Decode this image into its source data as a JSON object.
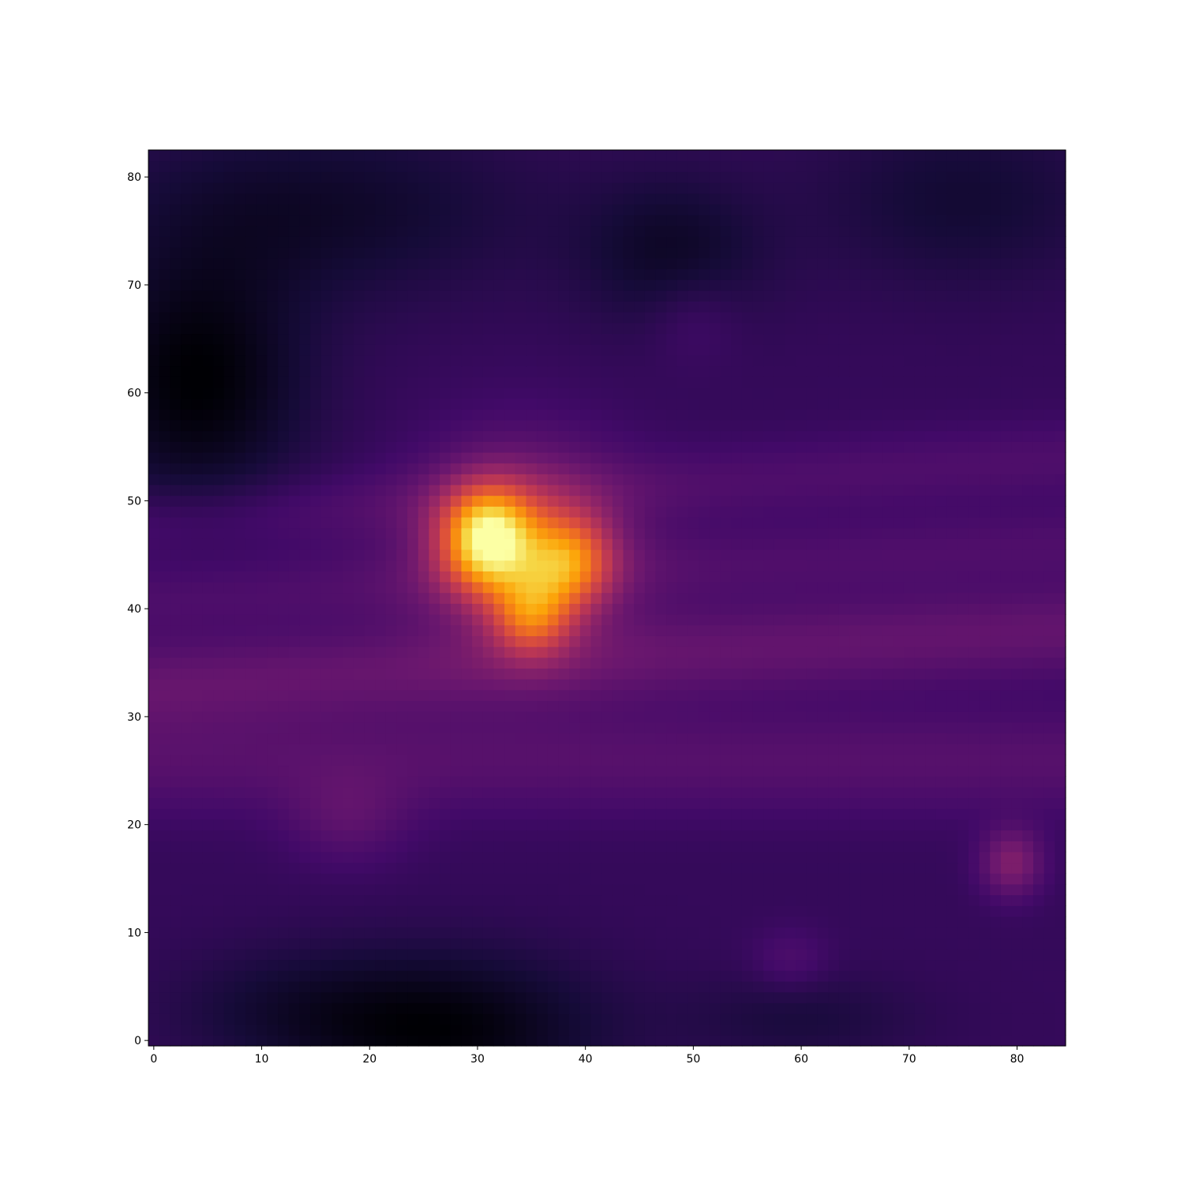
{
  "chart_data": {
    "type": "heatmap",
    "title": "",
    "xlabel": "",
    "ylabel": "",
    "colormap": "inferno",
    "grid": false,
    "origin": "lower",
    "xlim": [
      -0.5,
      84.5
    ],
    "ylim": [
      -0.5,
      82.5
    ],
    "x_ticks": [
      0,
      10,
      20,
      30,
      40,
      50,
      60,
      70,
      80
    ],
    "x_tick_labels": [
      "0",
      "10",
      "20",
      "30",
      "40",
      "50",
      "60",
      "70",
      "80"
    ],
    "y_ticks": [
      0,
      10,
      20,
      30,
      40,
      50,
      60,
      70,
      80
    ],
    "y_tick_labels": [
      "0",
      "10",
      "20",
      "30",
      "40",
      "50",
      "60",
      "70",
      "80"
    ],
    "grid_size": {
      "columns": 85,
      "rows": 83
    },
    "value_range": [
      0,
      1
    ],
    "background_level": 0.17,
    "features": [
      {
        "kind": "peak",
        "x": 31,
        "y": 46.5,
        "sx": 3.0,
        "sy": 3.2,
        "amplitude": 0.66
      },
      {
        "kind": "peak",
        "x": 38.5,
        "y": 44.5,
        "sx": 2.8,
        "sy": 3.0,
        "amplitude": 0.4
      },
      {
        "kind": "peak",
        "x": 35,
        "y": 39.5,
        "sx": 2.6,
        "sy": 2.6,
        "amplitude": 0.36
      },
      {
        "kind": "peak",
        "x": 34,
        "y": 46,
        "sx": 6.5,
        "sy": 6.5,
        "amplitude": 0.22
      },
      {
        "kind": "peak",
        "x": 79.5,
        "y": 16.5,
        "sx": 2.0,
        "sy": 2.2,
        "amplitude": 0.18
      },
      {
        "kind": "peak",
        "x": 59,
        "y": 7.5,
        "sx": 2.5,
        "sy": 2.0,
        "amplitude": 0.06
      },
      {
        "kind": "peak",
        "x": 18,
        "y": 20.5,
        "sx": 4.0,
        "sy": 3.0,
        "amplitude": 0.08
      },
      {
        "kind": "peak",
        "x": 50,
        "y": 67,
        "sx": 3.0,
        "sy": 3.0,
        "amplitude": 0.05
      },
      {
        "kind": "band",
        "y0": 33,
        "slope": 0.06,
        "sy": 3.0,
        "amplitude": 0.11
      },
      {
        "kind": "band",
        "y0": 26,
        "slope": 0.0,
        "sy": 3.5,
        "amplitude": 0.08
      },
      {
        "kind": "band",
        "y0": 41,
        "slope": 0.06,
        "sy": 2.5,
        "amplitude": 0.06
      },
      {
        "kind": "band",
        "y0": 48,
        "slope": 0.07,
        "sy": 2.5,
        "amplitude": 0.06
      },
      {
        "kind": "dark",
        "x": 4,
        "y": 61,
        "sx": 7.0,
        "sy": 8.0,
        "amplitude": 0.17
      },
      {
        "kind": "dark",
        "x": 27,
        "y": 1,
        "sx": 10.0,
        "sy": 5.0,
        "amplitude": 0.16
      },
      {
        "kind": "dark",
        "x": 48,
        "y": 73,
        "sx": 6.0,
        "sy": 5.0,
        "amplitude": 0.1
      },
      {
        "kind": "dark",
        "x": 15,
        "y": 77,
        "sx": 14.0,
        "sy": 6.0,
        "amplitude": 0.1
      },
      {
        "kind": "dark",
        "x": 75,
        "y": 78,
        "sx": 10.0,
        "sy": 6.0,
        "amplitude": 0.08
      },
      {
        "kind": "dark",
        "x": 12,
        "y": 3,
        "sx": 8.0,
        "sy": 4.0,
        "amplitude": 0.06
      },
      {
        "kind": "dark",
        "x": 60,
        "y": 2,
        "sx": 8.0,
        "sy": 3.0,
        "amplitude": 0.06
      }
    ]
  }
}
